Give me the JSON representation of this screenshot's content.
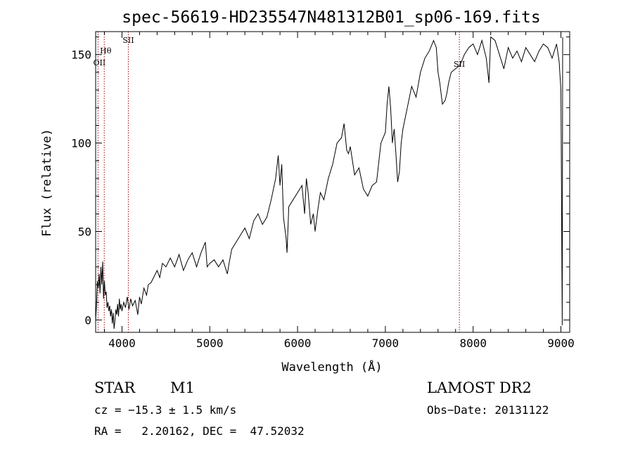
{
  "chart_data": {
    "type": "line",
    "title": "spec-56619-HD235547N481312B01_sp06-169.fits",
    "xlabel": "Wavelength (Å)",
    "ylabel": "Flux (relative)",
    "xlim": [
      3700,
      9100
    ],
    "ylim": [
      -7,
      163
    ],
    "xticks": [
      4000,
      5000,
      6000,
      7000,
      8000,
      9000
    ],
    "yticks": [
      0,
      50,
      100,
      150
    ],
    "grid": false,
    "lines": [
      {
        "label": "OII",
        "x": 3727
      },
      {
        "label": "Hθ",
        "x": 3798
      },
      {
        "label": "SII",
        "x": 4072
      },
      {
        "label": "SII",
        "x": 7843
      }
    ],
    "series": [
      {
        "x": [
          3700,
          3710,
          3720,
          3730,
          3740,
          3750,
          3760,
          3770,
          3780,
          3790,
          3800,
          3810,
          3820,
          3830,
          3840,
          3850,
          3860,
          3870,
          3880,
          3890,
          3900,
          3910,
          3920,
          3930,
          3940,
          3950,
          3960,
          3970,
          3980,
          3990,
          4000,
          4020,
          4040,
          4060,
          4080,
          4100,
          4120,
          4150,
          4180,
          4200,
          4220,
          4250,
          4280,
          4300,
          4330,
          4360,
          4400,
          4430,
          4460,
          4500,
          4550,
          4600,
          4650,
          4700,
          4750,
          4800,
          4850,
          4900,
          4950,
          4970,
          5000,
          5050,
          5100,
          5150,
          5200,
          5220,
          5250,
          5300,
          5350,
          5400,
          5450,
          5500,
          5550,
          5600,
          5650,
          5700,
          5750,
          5780,
          5800,
          5820,
          5840,
          5870,
          5880,
          5900,
          5950,
          6000,
          6050,
          6080,
          6100,
          6120,
          6150,
          6180,
          6200,
          6230,
          6260,
          6300,
          6350,
          6400,
          6450,
          6500,
          6530,
          6560,
          6580,
          6600,
          6650,
          6700,
          6750,
          6800,
          6850,
          6900,
          6950,
          7000,
          7020,
          7040,
          7060,
          7080,
          7100,
          7120,
          7140,
          7160,
          7180,
          7200,
          7250,
          7300,
          7350,
          7400,
          7450,
          7500,
          7550,
          7580,
          7600,
          7620,
          7650,
          7680,
          7700,
          7720,
          7750,
          7800,
          7850,
          7900,
          7950,
          8000,
          8050,
          8100,
          8150,
          8180,
          8200,
          8250,
          8300,
          8350,
          8400,
          8450,
          8500,
          8550,
          8600,
          8650,
          8700,
          8750,
          8800,
          8850,
          8900,
          8950,
          8980,
          9000,
          9010,
          9015,
          9020
        ],
        "values": [
          0,
          8,
          22,
          18,
          26,
          15,
          30,
          20,
          33,
          12,
          22,
          14,
          16,
          7,
          10,
          5,
          8,
          2,
          6,
          -2,
          4,
          -5,
          0,
          6,
          3,
          9,
          2,
          12,
          6,
          9,
          5,
          10,
          7,
          13,
          6,
          12,
          8,
          11,
          3,
          13,
          9,
          18,
          14,
          20,
          21,
          24,
          28,
          24,
          32,
          30,
          35,
          30,
          37,
          28,
          34,
          38,
          30,
          38,
          44,
          30,
          32,
          34,
          30,
          34,
          26,
          32,
          40,
          44,
          48,
          52,
          46,
          56,
          60,
          54,
          58,
          68,
          80,
          93,
          76,
          88,
          58,
          46,
          38,
          64,
          68,
          72,
          76,
          60,
          80,
          72,
          54,
          60,
          50,
          62,
          72,
          68,
          80,
          88,
          100,
          103,
          111,
          96,
          94,
          98,
          82,
          86,
          74,
          70,
          76,
          78,
          100,
          106,
          122,
          132,
          120,
          100,
          108,
          94,
          78,
          84,
          100,
          108,
          120,
          132,
          126,
          140,
          148,
          152,
          158,
          154,
          140,
          134,
          122,
          124,
          128,
          134,
          140,
          142,
          144,
          150,
          154,
          156,
          150,
          158,
          148,
          134,
          160,
          158,
          150,
          142,
          154,
          148,
          152,
          146,
          154,
          150,
          146,
          152,
          156,
          154,
          148,
          156,
          146,
          130,
          40,
          -3,
          160
        ]
      }
    ]
  },
  "info": {
    "class_label": "STAR",
    "subclass": "M1",
    "survey": "LAMOST DR2",
    "cz": "cz = −15.3 ± 1.5 km/s",
    "obs_date": "Obs−Date: 20131122",
    "coords": "RA =   2.20162, DEC =  47.52032"
  }
}
